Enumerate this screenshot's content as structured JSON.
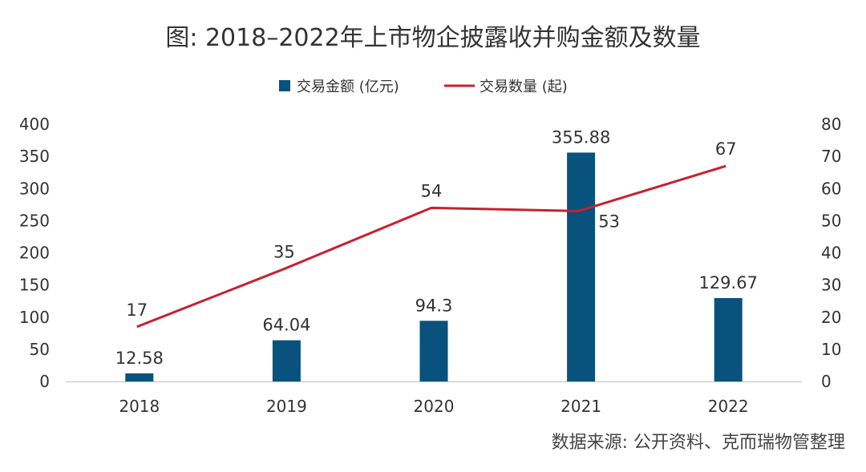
{
  "colors": {
    "bar": "#08527d",
    "line": "#c8202f",
    "axis": "#bfbfbf",
    "text": "#333333"
  },
  "chart_data": {
    "type": "bar+line",
    "title": "图: 2018–2022年上市物企披露收并购金额及数量",
    "categories": [
      "2018",
      "2019",
      "2020",
      "2021",
      "2022"
    ],
    "series": [
      {
        "name": "交易金额 (亿元)",
        "type": "bar",
        "axis": "left",
        "values": [
          12.58,
          64.04,
          94.3,
          355.88,
          129.67
        ],
        "labels": [
          "12.58",
          "64.04",
          "94.3",
          "355.88",
          "129.67"
        ]
      },
      {
        "name": "交易数量 (起)",
        "type": "line",
        "axis": "right",
        "values": [
          17,
          35,
          54,
          53,
          67
        ],
        "labels": [
          "17",
          "35",
          "54",
          "53",
          "67"
        ]
      }
    ],
    "y_left": {
      "min": 0,
      "max": 400,
      "ticks": [
        "0",
        "50",
        "100",
        "150",
        "200",
        "250",
        "300",
        "350",
        "400"
      ]
    },
    "y_right": {
      "min": 0,
      "max": 80,
      "ticks": [
        "0",
        "10",
        "20",
        "30",
        "40",
        "50",
        "60",
        "70",
        "80"
      ]
    },
    "grid": false,
    "legend_position": "top-center"
  },
  "source_note": "数据来源: 公开资料、克而瑞物管整理"
}
